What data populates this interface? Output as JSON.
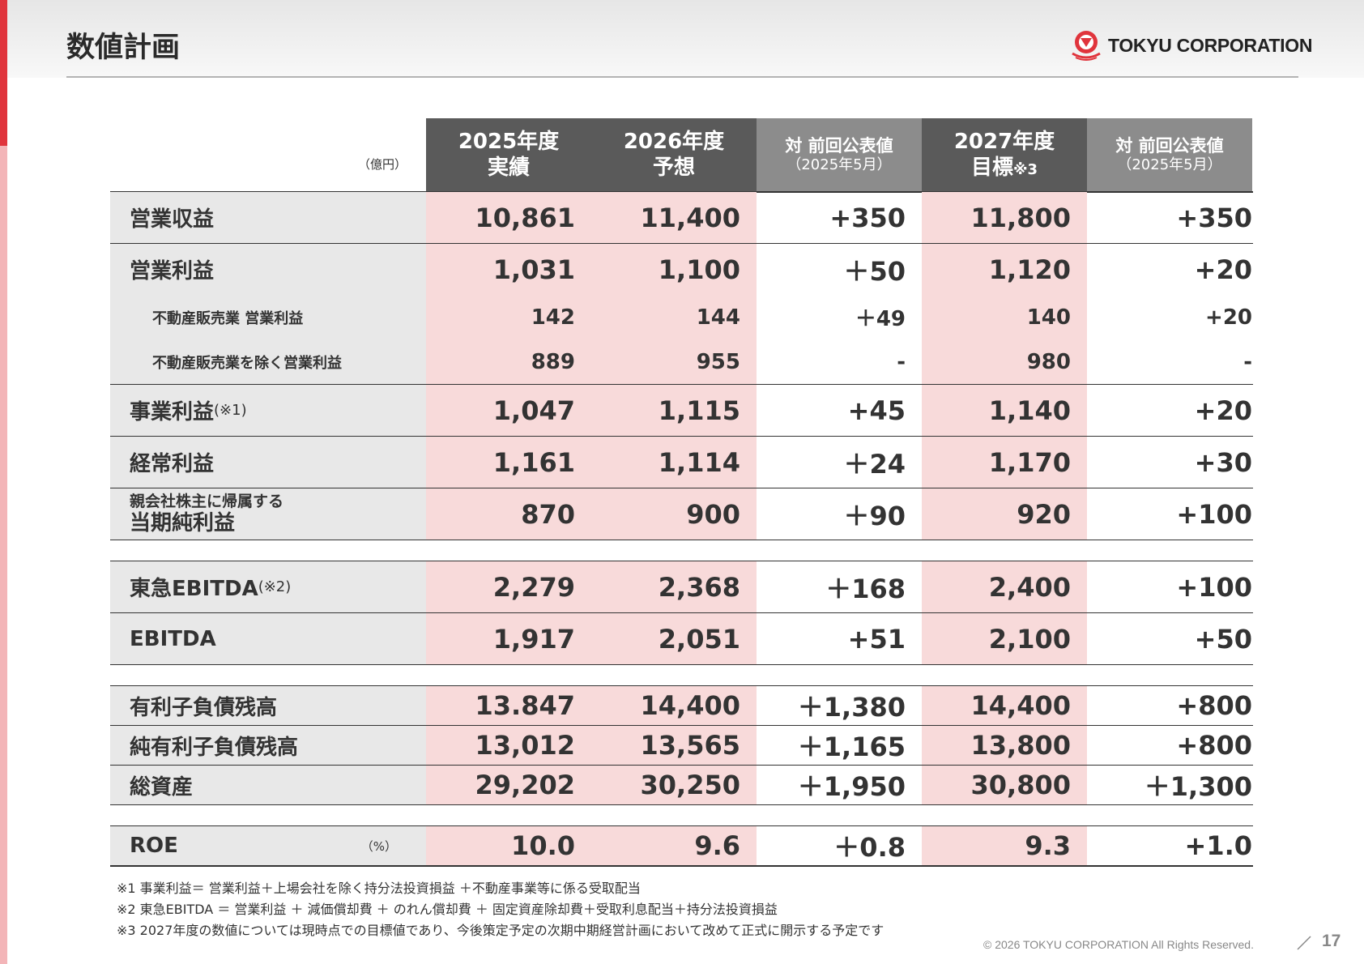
{
  "header": {
    "title": "数値計画",
    "logo_text": "TOKYU CORPORATION"
  },
  "table": {
    "unit": "（億円）",
    "columns": [
      {
        "line1": "2025年度",
        "line2": "実績"
      },
      {
        "line1": "2026年度",
        "line2": "予想"
      },
      {
        "line1": "対 前回公表値",
        "line2": "（2025年5月）"
      },
      {
        "line1": "2027年度",
        "line2": "目標",
        "note": "※3"
      },
      {
        "line1": "対 前回公表値",
        "line2": "（2025年5月）"
      }
    ],
    "rows": {
      "operating_revenue": {
        "label": "営業収益",
        "values": [
          "10,861",
          "11,400",
          "+350",
          "11,800",
          "+350"
        ]
      },
      "operating_income": {
        "label": "営業利益",
        "values": [
          "1,031",
          "1,100",
          "＋50",
          "1,120",
          "+20"
        ]
      },
      "real_estate_sales_income": {
        "label": "不動産販売業 営業利益",
        "values": [
          "142",
          "144",
          "＋49",
          "140",
          "+20"
        ]
      },
      "income_excl_real_estate_sales": {
        "label": "不動産販売業を除く営業利益",
        "values": [
          "889",
          "955",
          "-",
          "980",
          "-"
        ]
      },
      "business_profit": {
        "label": "事業利益",
        "note": "(※1)",
        "values": [
          "1,047",
          "1,115",
          "+45",
          "1,140",
          "+20"
        ]
      },
      "ordinary_income": {
        "label": "経常利益",
        "values": [
          "1,161",
          "1,114",
          "＋24",
          "1,170",
          "+30"
        ]
      },
      "net_income": {
        "label_line1": "親会社株主に帰属する",
        "label_line2": "当期純利益",
        "values": [
          "870",
          "900",
          "＋90",
          "920",
          "+100"
        ]
      },
      "tokyu_ebitda": {
        "label": "東急EBITDA",
        "note": "(※2)",
        "values": [
          "2,279",
          "2,368",
          "＋168",
          "2,400",
          "+100"
        ]
      },
      "ebitda": {
        "label": "EBITDA",
        "values": [
          "1,917",
          "2,051",
          "+51",
          "2,100",
          "+50"
        ]
      },
      "interest_bearing_debt": {
        "label": "有利子負債残高",
        "values": [
          "13.847",
          "14,400",
          "＋1,380",
          "14,400",
          "+800"
        ]
      },
      "net_interest_bearing_debt": {
        "label": "純有利子負債残高",
        "values": [
          "13,012",
          "13,565",
          "＋1,165",
          "13,800",
          "+800"
        ]
      },
      "total_assets": {
        "label": "総資産",
        "values": [
          "29,202",
          "30,250",
          "＋1,950",
          "30,800",
          "＋1,300"
        ]
      },
      "roe": {
        "label": "ROE",
        "unit": "（%）",
        "values": [
          "10.0",
          "9.6",
          "＋0.8",
          "9.3",
          "+1.0"
        ]
      }
    }
  },
  "notes": [
    "※1 事業利益＝ 営業利益＋上場会社を除く持分法投資損益 ＋不動産事業等に係る受取配当",
    "※2 東急EBITDA ＝ 営業利益 ＋ 減価償却費 ＋ のれん償却費 ＋ 固定資産除却費＋受取利息配当＋持分法投資損益",
    "※3 2027年度の数値については現時点での目標値であり、今後策定予定の次期中期経営計画において改めて正式に開示する予定です"
  ],
  "footer": {
    "copyright": "© 2026 TOKYU CORPORATION All Rights Reserved.",
    "page_number": "17"
  },
  "colors": {
    "accent_red": "#e0343c",
    "accent_pink": "#f3b5b8",
    "header_dark": "#5a5a5a",
    "header_light": "#8c8c8c",
    "cell_pink": "#f8dada",
    "label_gray": "#e8e8e8"
  }
}
